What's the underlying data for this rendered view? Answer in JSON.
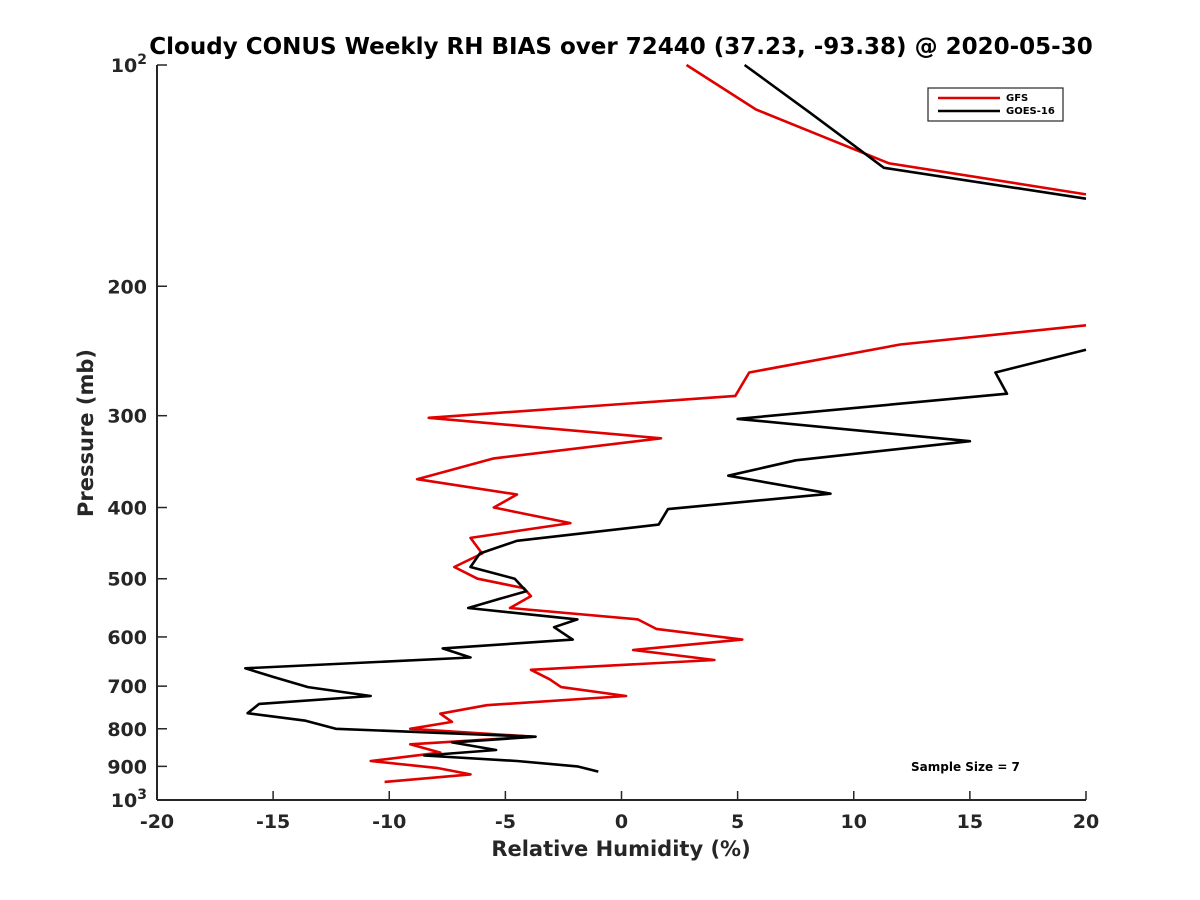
{
  "chart_data": {
    "type": "line",
    "title": "Cloudy CONUS Weekly RH BIAS over 72440 (37.23, -93.38) @ 2020-05-30",
    "xlabel": "Relative Humidity (%)",
    "ylabel": "Pressure (mb)",
    "xlim": [
      -20,
      20
    ],
    "ylim": [
      100,
      1000
    ],
    "y_scale": "log",
    "y_reversed": true,
    "xticks": [
      -20,
      -15,
      -10,
      -5,
      0,
      5,
      10,
      15,
      20
    ],
    "xtick_labels": [
      "-20",
      "-15",
      "-10",
      "-5",
      "0",
      "5",
      "10",
      "15",
      "20"
    ],
    "yticks": [
      {
        "value": 100,
        "base": "10",
        "exp": "2"
      },
      {
        "value": 200,
        "label": "200"
      },
      {
        "value": 300,
        "label": "300"
      },
      {
        "value": 400,
        "label": "400"
      },
      {
        "value": 500,
        "label": "500"
      },
      {
        "value": 600,
        "label": "600"
      },
      {
        "value": 700,
        "label": "700"
      },
      {
        "value": 800,
        "label": "800"
      },
      {
        "value": 900,
        "label": "900"
      },
      {
        "value": 1000,
        "base": "10",
        "exp": "3"
      }
    ],
    "grid": false,
    "legend_position": "top-right",
    "annotation": "Sample Size = 7",
    "series": [
      {
        "name": "GFS",
        "color": "#e00000",
        "segments": [
          [
            [
              2.8,
              100
            ],
            [
              5.8,
              115
            ],
            [
              11.5,
              136
            ],
            [
              20,
              150
            ]
          ],
          [
            [
              20,
              226
            ],
            [
              12,
              240
            ],
            [
              5.5,
              262
            ],
            [
              4.9,
              282
            ],
            [
              -8.3,
              302
            ],
            [
              1.7,
              322
            ],
            [
              -5.5,
              343
            ],
            [
              -8.8,
              366
            ],
            [
              -4.5,
              384
            ],
            [
              -5.5,
              400
            ],
            [
              -2.2,
              420
            ],
            [
              -6.5,
              440
            ],
            [
              -6.0,
              462
            ],
            [
              -7.2,
              482
            ],
            [
              -6.2,
              500
            ],
            [
              -4.2,
              515
            ],
            [
              -3.9,
              528
            ],
            [
              -4.8,
              548
            ],
            [
              0.7,
              568
            ],
            [
              1.5,
              585
            ],
            [
              5.2,
              605
            ],
            [
              0.5,
              625
            ],
            [
              4.0,
              645
            ],
            [
              -3.9,
              665
            ],
            [
              -3.1,
              685
            ],
            [
              -2.6,
              702
            ],
            [
              0.2,
              722
            ],
            [
              -5.8,
              743
            ],
            [
              -7.8,
              763
            ],
            [
              -7.3,
              783
            ],
            [
              -9.1,
              800
            ],
            [
              -3.8,
              820
            ],
            [
              -9.1,
              840
            ],
            [
              -7.8,
              862
            ],
            [
              -10.8,
              885
            ],
            [
              -7.9,
              905
            ],
            [
              -6.5,
              923
            ],
            [
              -10.2,
              945
            ]
          ]
        ]
      },
      {
        "name": "GOES-16",
        "color": "#000000",
        "segments": [
          [
            [
              5.3,
              100
            ],
            [
              8.1,
              116
            ],
            [
              11.3,
              138
            ],
            [
              20,
              152
            ]
          ],
          [
            [
              20,
              244
            ],
            [
              16.1,
              262
            ],
            [
              16.6,
              280
            ],
            [
              5.0,
              303
            ],
            [
              15.0,
              325
            ],
            [
              7.5,
              345
            ],
            [
              4.6,
              362
            ],
            [
              9.0,
              383
            ],
            [
              2.0,
              402
            ],
            [
              1.6,
              422
            ],
            [
              -4.5,
              444
            ],
            [
              -6.1,
              462
            ],
            [
              -6.5,
              482
            ],
            [
              -4.6,
              500
            ],
            [
              -4.1,
              520
            ],
            [
              -5.2,
              532
            ],
            [
              -6.6,
              548
            ],
            [
              -1.9,
              568
            ],
            [
              -2.9,
              582
            ],
            [
              -2.1,
              605
            ],
            [
              -7.7,
              622
            ],
            [
              -6.5,
              640
            ],
            [
              -16.2,
              662
            ],
            [
              -15.0,
              680
            ],
            [
              -13.5,
              702
            ],
            [
              -10.8,
              722
            ],
            [
              -15.6,
              740
            ],
            [
              -16.1,
              762
            ],
            [
              -13.6,
              780
            ],
            [
              -12.3,
              800
            ],
            [
              -3.7,
              820
            ],
            [
              -7.3,
              835
            ],
            [
              -5.4,
              855
            ],
            [
              -8.5,
              870
            ],
            [
              -4.5,
              885
            ],
            [
              -1.9,
              900
            ],
            [
              -1.0,
              915
            ]
          ]
        ]
      }
    ]
  }
}
